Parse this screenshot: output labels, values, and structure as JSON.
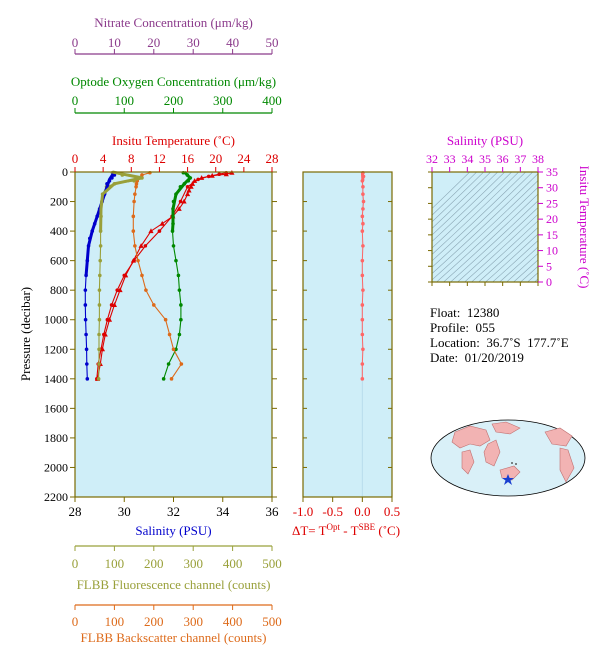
{
  "info": {
    "float": "Float:  12380",
    "profile": "Profile:  055",
    "location": "Location:  36.7˚S  177.7˚E",
    "date": "Date:  01/20/2019"
  },
  "colors": {
    "temperature": "#dd0000",
    "salinity": "#0000cc",
    "oxygen": "#008800",
    "nitrate": "#8b3a8b",
    "fluorescence": "#99a03a",
    "backscatter": "#dd6a1a",
    "delta": "#ff6666",
    "ts_axis": "#cc00cc",
    "plot_bg": "#cfeef8",
    "frame": "#7a6a00"
  },
  "chart_data": [
    {
      "type": "line",
      "panel": "main-profile",
      "ylabel": "Pressure (decibar)",
      "ylim": [
        2200,
        0
      ],
      "yticks": [
        0,
        200,
        400,
        600,
        800,
        1000,
        1200,
        1400,
        1600,
        1800,
        2000,
        2200
      ],
      "axes": {
        "nitrate": {
          "label": "Nitrate Concentration (μm/kg)",
          "range": [
            0,
            50
          ],
          "ticks": [
            0,
            10,
            20,
            30,
            40,
            50
          ]
        },
        "oxygen": {
          "label": "Optode Oxygen Concentration (μm/kg)",
          "range": [
            0,
            400
          ],
          "ticks": [
            0,
            100,
            200,
            300,
            400
          ]
        },
        "temperature": {
          "label": "Insitu Temperature (˚C)",
          "range": [
            0,
            28
          ],
          "ticks": [
            0,
            4,
            8,
            12,
            16,
            20,
            24,
            28
          ]
        },
        "salinity": {
          "label": "Salinity (PSU)",
          "range": [
            28,
            36
          ],
          "ticks": [
            28,
            30,
            32,
            34,
            36
          ]
        },
        "fluorescence": {
          "label": "FLBB Fluorescence channel (counts)",
          "range": [
            0,
            500
          ],
          "ticks": [
            0,
            100,
            200,
            300,
            400,
            500
          ]
        },
        "backscatter": {
          "label": "FLBB Backscatter channel (counts)",
          "range": [
            0,
            500
          ],
          "ticks": [
            0,
            100,
            200,
            300,
            400,
            500
          ]
        }
      },
      "series": [
        {
          "axis": "temperature",
          "marker": "triangle",
          "p": [
            5,
            15,
            25,
            40,
            60,
            80,
            100,
            125,
            150,
            200,
            250,
            300,
            350,
            400,
            500,
            600,
            700,
            800,
            900,
            1000,
            1100,
            1200,
            1300,
            1400
          ],
          "v": [
            22.3,
            21.5,
            19.5,
            18.0,
            17.0,
            16.7,
            16.5,
            16.2,
            16.0,
            15.5,
            14.8,
            13.9,
            12.4,
            10.8,
            9.4,
            8.3,
            7.2,
            6.4,
            5.6,
            4.9,
            4.3,
            3.9,
            3.6,
            3.2
          ]
        },
        {
          "axis": "temperature",
          "marker": "dot",
          "p": [
            5,
            15,
            30,
            50,
            100,
            200,
            300,
            400,
            500,
            600,
            700,
            800,
            900,
            1000,
            1100,
            1200,
            1300,
            1400
          ],
          "v": [
            21.5,
            20.5,
            19.0,
            17.5,
            16.0,
            15.0,
            13.8,
            12.0,
            10.0,
            8.4,
            7.0,
            6.0,
            5.2,
            4.6,
            4.1,
            3.7,
            3.3,
            3.1
          ]
        },
        {
          "axis": "salinity",
          "marker": "dot",
          "p": [
            5,
            20,
            40,
            60,
            80,
            100,
            150,
            200,
            250,
            300,
            350,
            400,
            450,
            500,
            600,
            700,
            800,
            900,
            1000,
            1100,
            1200,
            1300,
            1400
          ],
          "v": [
            29.6,
            29.6,
            29.5,
            29.4,
            29.3,
            29.3,
            29.2,
            29.1,
            29.0,
            28.9,
            28.8,
            28.7,
            28.6,
            28.55,
            28.5,
            28.45,
            28.42,
            28.42,
            28.43,
            28.45,
            28.47,
            28.48,
            28.5
          ]
        },
        {
          "axis": "oxygen",
          "marker": "dot",
          "p": [
            5,
            20,
            40,
            60,
            80,
            100,
            150,
            200,
            250,
            300,
            350,
            400,
            500,
            600,
            700,
            800,
            900,
            1000,
            1100,
            1200,
            1300,
            1400
          ],
          "v": [
            220,
            228,
            234,
            230,
            222,
            214,
            205,
            200,
            199,
            199,
            199,
            198,
            200,
            205,
            210,
            212,
            215,
            215,
            212,
            205,
            190,
            180
          ]
        },
        {
          "axis": "fluorescence",
          "marker": "dot",
          "p": [
            5,
            20,
            40,
            60,
            80,
            100,
            150,
            200,
            300,
            400,
            500,
            600,
            700,
            800,
            900,
            1000,
            1100,
            1200,
            1300,
            1400
          ],
          "v": [
            95,
            120,
            170,
            150,
            100,
            80,
            70,
            68,
            66,
            65,
            65,
            64,
            63,
            62,
            62,
            62,
            61,
            61,
            61,
            60
          ]
        },
        {
          "axis": "backscatter",
          "marker": "dot",
          "p": [
            5,
            20,
            40,
            60,
            80,
            100,
            150,
            200,
            300,
            400,
            500,
            600,
            700,
            800,
            900,
            1000,
            1100,
            1200,
            1300,
            1400
          ],
          "v": [
            190,
            170,
            160,
            158,
            156,
            155,
            152,
            150,
            148,
            148,
            152,
            160,
            170,
            180,
            200,
            230,
            240,
            250,
            270,
            245
          ]
        }
      ]
    },
    {
      "type": "scatter",
      "panel": "delta-t",
      "xlabel": "ΔT= T",
      "xlabel_sup1": "Opt",
      "xlabel_mid": " - T",
      "xlabel_sup2": "SBE",
      "xlabel_end": " (˚C)",
      "xlim": [
        -1.0,
        0.5
      ],
      "xticks": [
        "-1.0",
        "-0.5",
        "0.0",
        "0.5"
      ],
      "ylim": [
        2200,
        0
      ],
      "p": [
        5,
        30,
        60,
        100,
        150,
        200,
        250,
        300,
        350,
        400,
        500,
        600,
        700,
        800,
        900,
        1000,
        1100,
        1200,
        1300,
        1400
      ],
      "v": [
        0.01,
        0.02,
        0.0,
        0.01,
        0.01,
        0.02,
        0.01,
        0.0,
        0.01,
        0.0,
        0.01,
        0.0,
        0.0,
        0.01,
        0.0,
        0.0,
        0.0,
        0.01,
        0.0,
        0.0
      ]
    },
    {
      "type": "line",
      "panel": "ts-diagram",
      "xlabel": "Salinity (PSU)",
      "xlim": [
        32,
        38
      ],
      "xticks": [
        32,
        33,
        34,
        35,
        36,
        37,
        38
      ],
      "ylabel": "Insitu Temperature (˚C)",
      "ylim": [
        0,
        35
      ],
      "yticks": [
        0,
        5,
        10,
        15,
        20,
        25,
        30,
        35
      ]
    }
  ]
}
